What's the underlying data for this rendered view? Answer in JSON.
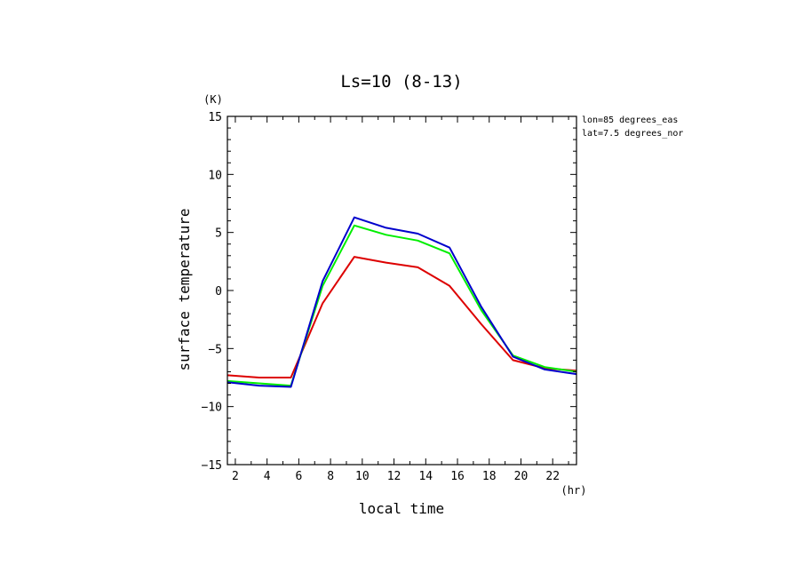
{
  "chart_data": {
    "type": "line",
    "title": "Ls=10 (8-13)",
    "xlabel": "local time",
    "ylabel": "surface temperature",
    "x_unit": "(hr)",
    "y_unit": "(K)",
    "annotations": [
      "lon=85 degrees_eas",
      "lat=7.5 degrees_nor"
    ],
    "xlim": [
      1.5,
      23.5
    ],
    "ylim": [
      -15,
      15
    ],
    "x_ticks": [
      2,
      4,
      6,
      8,
      10,
      12,
      14,
      16,
      18,
      20,
      22
    ],
    "y_ticks": [
      -15,
      -10,
      -5,
      0,
      5,
      10,
      15
    ],
    "grid": false,
    "x": [
      1.5,
      3.5,
      5.5,
      7.5,
      9.5,
      11.5,
      13.5,
      15.5,
      17.5,
      19.5,
      21.5,
      23.5
    ],
    "series": [
      {
        "color": "#dd0000",
        "values": [
          -7.3,
          -7.5,
          -7.5,
          -1.1,
          2.9,
          2.4,
          2.0,
          0.4,
          -2.9,
          -6.0,
          -6.7,
          -6.9
        ]
      },
      {
        "color": "#00ee00",
        "values": [
          -7.8,
          -8.0,
          -8.2,
          0.4,
          5.6,
          4.8,
          4.3,
          3.2,
          -1.7,
          -5.6,
          -6.6,
          -7.0
        ]
      },
      {
        "color": "#0000cc",
        "values": [
          -7.9,
          -8.2,
          -8.3,
          0.8,
          6.3,
          5.4,
          4.9,
          3.7,
          -1.4,
          -5.7,
          -6.8,
          -7.2
        ]
      }
    ]
  }
}
